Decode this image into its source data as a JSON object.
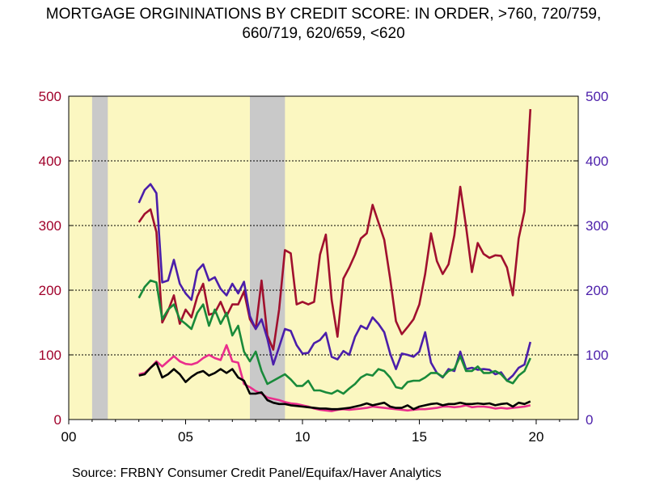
{
  "chart_data": {
    "type": "line",
    "title_lines": [
      "MORTGAGE ORGININATIONS BY CREDIT SCORE:  IN ORDER, >760, 720/759,",
      "660/719, 620/659, <620"
    ],
    "source": "Source:  FRBNY Consumer Credit Panel/Equifax/Haver Analytics",
    "x_axis": {
      "range": [
        2000,
        2021.8
      ],
      "ticks": [
        2000,
        2005,
        2010,
        2015,
        2020
      ],
      "tick_labels": [
        "00",
        "05",
        "10",
        "15",
        "20"
      ]
    },
    "y_left": {
      "range": [
        0,
        500
      ],
      "ticks": [
        0,
        100,
        200,
        300,
        400,
        500
      ],
      "color": "#a0002a"
    },
    "y_right": {
      "range": [
        0,
        500
      ],
      "ticks": [
        0,
        100,
        200,
        300,
        400,
        500
      ],
      "color": "#4b1eaa"
    },
    "grid": "horizontal-dotted",
    "background_color": "#fbf7c1",
    "recessions": [
      [
        2001.0,
        2001.67
      ],
      [
        2007.75,
        2009.25
      ]
    ],
    "recession_color": "#c9c9c9",
    "series": [
      {
        "name": ">760",
        "color": "#a0102e",
        "x": [
          2003.0,
          2003.25,
          2003.5,
          2003.75,
          2004.0,
          2004.25,
          2004.5,
          2004.75,
          2005.0,
          2005.25,
          2005.5,
          2005.75,
          2006.0,
          2006.25,
          2006.5,
          2006.75,
          2007.0,
          2007.25,
          2007.5,
          2007.75,
          2008.0,
          2008.25,
          2008.5,
          2008.75,
          2009.0,
          2009.25,
          2009.5,
          2009.75,
          2010.0,
          2010.25,
          2010.5,
          2010.75,
          2011.0,
          2011.25,
          2011.5,
          2011.75,
          2012.0,
          2012.25,
          2012.5,
          2012.75,
          2013.0,
          2013.25,
          2013.5,
          2013.75,
          2014.0,
          2014.25,
          2014.5,
          2014.75,
          2015.0,
          2015.25,
          2015.5,
          2015.75,
          2016.0,
          2016.25,
          2016.5,
          2016.75,
          2017.0,
          2017.25,
          2017.5,
          2017.75,
          2018.0,
          2018.25,
          2018.5,
          2018.75,
          2019.0,
          2019.25,
          2019.5,
          2019.75
        ],
        "y": [
          305,
          318,
          325,
          290,
          150,
          168,
          192,
          148,
          170,
          158,
          190,
          210,
          162,
          165,
          182,
          160,
          178,
          178,
          198,
          155,
          140,
          215,
          130,
          108,
          170,
          262,
          257,
          178,
          182,
          178,
          182,
          255,
          286,
          185,
          128,
          218,
          235,
          255,
          280,
          288,
          332,
          305,
          278,
          218,
          152,
          132,
          143,
          155,
          178,
          225,
          288,
          245,
          225,
          240,
          285,
          360,
          298,
          228,
          273,
          256,
          250,
          254,
          253,
          235,
          192,
          280,
          322,
          480
        ]
      },
      {
        "name": "720/759",
        "color": "#4b1eaa",
        "x": [
          2003.0,
          2003.25,
          2003.5,
          2003.75,
          2004.0,
          2004.25,
          2004.5,
          2004.75,
          2005.0,
          2005.25,
          2005.5,
          2005.75,
          2006.0,
          2006.25,
          2006.5,
          2006.75,
          2007.0,
          2007.25,
          2007.5,
          2007.75,
          2008.0,
          2008.25,
          2008.5,
          2008.75,
          2009.0,
          2009.25,
          2009.5,
          2009.75,
          2010.0,
          2010.25,
          2010.5,
          2010.75,
          2011.0,
          2011.25,
          2011.5,
          2011.75,
          2012.0,
          2012.25,
          2012.5,
          2012.75,
          2013.0,
          2013.25,
          2013.5,
          2013.75,
          2014.0,
          2014.25,
          2014.5,
          2014.75,
          2015.0,
          2015.25,
          2015.5,
          2015.75,
          2016.0,
          2016.25,
          2016.5,
          2016.75,
          2017.0,
          2017.25,
          2017.5,
          2017.75,
          2018.0,
          2018.25,
          2018.5,
          2018.75,
          2019.0,
          2019.25,
          2019.5,
          2019.75
        ],
        "y": [
          335,
          355,
          364,
          350,
          212,
          215,
          247,
          210,
          195,
          185,
          230,
          240,
          215,
          220,
          202,
          192,
          210,
          195,
          213,
          160,
          140,
          155,
          125,
          85,
          112,
          140,
          137,
          115,
          102,
          103,
          118,
          123,
          134,
          97,
          93,
          106,
          100,
          128,
          145,
          140,
          158,
          148,
          135,
          102,
          78,
          102,
          100,
          97,
          105,
          135,
          88,
          72,
          65,
          78,
          75,
          105,
          78,
          80,
          77,
          78,
          77,
          70,
          73,
          60,
          68,
          80,
          85,
          120
        ]
      },
      {
        "name": "660/719",
        "color": "#198a3a",
        "x": [
          2003.0,
          2003.25,
          2003.5,
          2003.75,
          2004.0,
          2004.25,
          2004.5,
          2004.75,
          2005.0,
          2005.25,
          2005.5,
          2005.75,
          2006.0,
          2006.25,
          2006.5,
          2006.75,
          2007.0,
          2007.25,
          2007.5,
          2007.75,
          2008.0,
          2008.25,
          2008.5,
          2008.75,
          2009.0,
          2009.25,
          2009.5,
          2009.75,
          2010.0,
          2010.25,
          2010.5,
          2010.75,
          2011.0,
          2011.25,
          2011.5,
          2011.75,
          2012.0,
          2012.25,
          2012.5,
          2012.75,
          2013.0,
          2013.25,
          2013.5,
          2013.75,
          2014.0,
          2014.25,
          2014.5,
          2014.75,
          2015.0,
          2015.25,
          2015.5,
          2015.75,
          2016.0,
          2016.25,
          2016.5,
          2016.75,
          2017.0,
          2017.25,
          2017.5,
          2017.75,
          2018.0,
          2018.25,
          2018.5,
          2018.75,
          2019.0,
          2019.25,
          2019.5,
          2019.75
        ],
        "y": [
          188,
          205,
          215,
          212,
          155,
          170,
          178,
          155,
          148,
          140,
          165,
          178,
          145,
          170,
          148,
          165,
          130,
          145,
          105,
          90,
          105,
          75,
          55,
          60,
          65,
          70,
          62,
          52,
          52,
          60,
          45,
          45,
          42,
          40,
          45,
          40,
          48,
          55,
          65,
          70,
          68,
          78,
          75,
          65,
          50,
          48,
          58,
          60,
          60,
          65,
          72,
          72,
          66,
          75,
          78,
          98,
          75,
          75,
          82,
          72,
          72,
          75,
          70,
          60,
          56,
          68,
          75,
          95
        ]
      },
      {
        "name": "620/659",
        "color": "#ea2e8c",
        "x": [
          2003.0,
          2003.25,
          2003.5,
          2003.75,
          2004.0,
          2004.25,
          2004.5,
          2004.75,
          2005.0,
          2005.25,
          2005.5,
          2005.75,
          2006.0,
          2006.25,
          2006.5,
          2006.75,
          2007.0,
          2007.25,
          2007.5,
          2007.75,
          2008.0,
          2008.25,
          2008.5,
          2008.75,
          2009.0,
          2009.25,
          2009.5,
          2009.75,
          2010.0,
          2010.25,
          2010.5,
          2010.75,
          2011.0,
          2011.25,
          2011.5,
          2011.75,
          2012.0,
          2012.25,
          2012.5,
          2012.75,
          2013.0,
          2013.25,
          2013.5,
          2013.75,
          2014.0,
          2014.25,
          2014.5,
          2014.75,
          2015.0,
          2015.25,
          2015.5,
          2015.75,
          2016.0,
          2016.25,
          2016.5,
          2016.75,
          2017.0,
          2017.25,
          2017.5,
          2017.75,
          2018.0,
          2018.25,
          2018.5,
          2018.75,
          2019.0,
          2019.25,
          2019.5,
          2019.75
        ],
        "y": [
          70,
          72,
          80,
          90,
          82,
          90,
          98,
          90,
          86,
          85,
          88,
          95,
          100,
          95,
          92,
          115,
          90,
          88,
          55,
          50,
          44,
          40,
          34,
          32,
          30,
          27,
          25,
          24,
          22,
          20,
          17,
          15,
          14,
          13,
          15,
          16,
          15,
          16,
          17,
          18,
          20,
          19,
          18,
          17,
          16,
          15,
          14,
          15,
          16,
          16,
          17,
          18,
          20,
          20,
          19,
          20,
          22,
          19,
          20,
          20,
          19,
          17,
          18,
          17,
          18,
          19,
          20,
          22
        ]
      },
      {
        "name": "<620",
        "color": "#000000",
        "x": [
          2003.0,
          2003.25,
          2003.5,
          2003.75,
          2004.0,
          2004.25,
          2004.5,
          2004.75,
          2005.0,
          2005.25,
          2005.5,
          2005.75,
          2006.0,
          2006.25,
          2006.5,
          2006.75,
          2007.0,
          2007.25,
          2007.5,
          2007.75,
          2008.0,
          2008.25,
          2008.5,
          2008.75,
          2009.0,
          2009.25,
          2009.5,
          2009.75,
          2010.0,
          2010.25,
          2010.5,
          2010.75,
          2011.0,
          2011.25,
          2011.5,
          2011.75,
          2012.0,
          2012.25,
          2012.5,
          2012.75,
          2013.0,
          2013.25,
          2013.5,
          2013.75,
          2014.0,
          2014.25,
          2014.5,
          2014.75,
          2015.0,
          2015.25,
          2015.5,
          2015.75,
          2016.0,
          2016.25,
          2016.5,
          2016.75,
          2017.0,
          2017.25,
          2017.5,
          2017.75,
          2018.0,
          2018.25,
          2018.5,
          2018.75,
          2019.0,
          2019.25,
          2019.5,
          2019.75
        ],
        "y": [
          68,
          70,
          80,
          88,
          65,
          70,
          78,
          70,
          58,
          66,
          72,
          75,
          68,
          72,
          78,
          72,
          78,
          65,
          60,
          40,
          40,
          42,
          30,
          26,
          24,
          24,
          22,
          21,
          20,
          19,
          18,
          17,
          17,
          16,
          16,
          17,
          18,
          20,
          22,
          25,
          22,
          24,
          26,
          20,
          18,
          18,
          22,
          16,
          20,
          22,
          24,
          25,
          22,
          24,
          24,
          26,
          24,
          24,
          25,
          24,
          25,
          22,
          24,
          25,
          20,
          26,
          24,
          28
        ]
      }
    ]
  }
}
